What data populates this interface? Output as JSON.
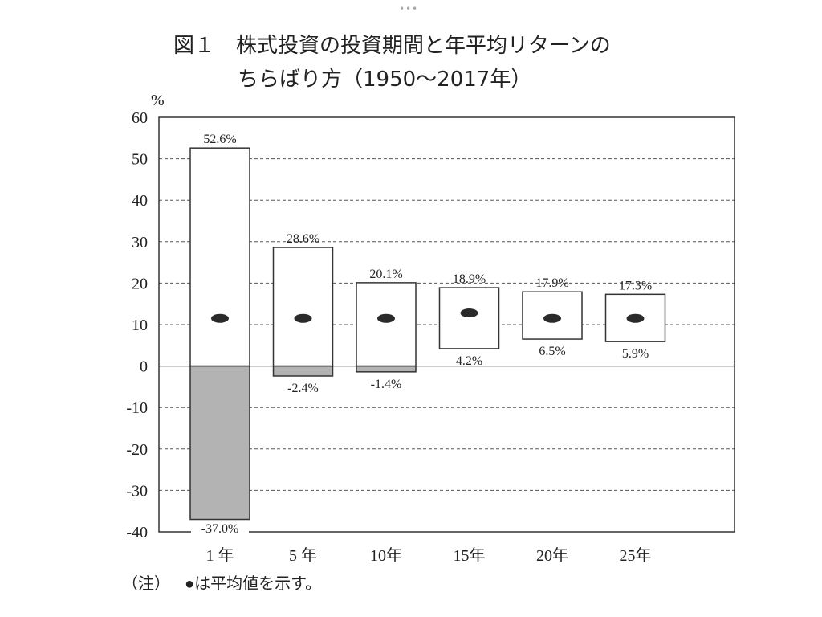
{
  "header": {
    "menu_dots": "•••"
  },
  "chart_data": {
    "type": "bar",
    "subtype": "range",
    "figure_label": "図１",
    "title": "株式投資の投資期間と年平均リターンの",
    "title_line2": "ちらばり方（1950〜2017年）",
    "ylabel": "%",
    "xlabel": "",
    "ylim": [
      -40,
      60
    ],
    "yticks": [
      60,
      50,
      40,
      30,
      20,
      10,
      0,
      -10,
      -20,
      -30,
      -40
    ],
    "ytick_labels": [
      "60",
      "50",
      "40",
      "30",
      "20",
      "10",
      "0",
      "-10",
      "-20",
      "-30",
      "-40"
    ],
    "grid": "horizontal-dashed",
    "categories": [
      "1 年",
      "5 年",
      "10年",
      "15年",
      "20年",
      "25年"
    ],
    "max": [
      52.6,
      28.6,
      20.1,
      18.9,
      17.9,
      17.3
    ],
    "min": [
      -37.0,
      -2.4,
      -1.4,
      4.2,
      6.5,
      5.9
    ],
    "max_labels": [
      "52.6%",
      "28.6%",
      "20.1%",
      "18.9%",
      "17.9%",
      "17.3%"
    ],
    "min_labels": [
      "-37.0%",
      "-2.4%",
      "-1.4%",
      "4.2%",
      "6.5%",
      "5.9%"
    ],
    "mean": [
      11.5,
      11.5,
      11.5,
      12.8,
      11.5,
      11.5
    ],
    "colors": {
      "positive": "#ffffff",
      "negative": "#b3b3b3",
      "mean": "#2a2a2a",
      "axis": "#333333"
    },
    "note_label": "（注）",
    "note_text": "●は平均値を示す。"
  }
}
